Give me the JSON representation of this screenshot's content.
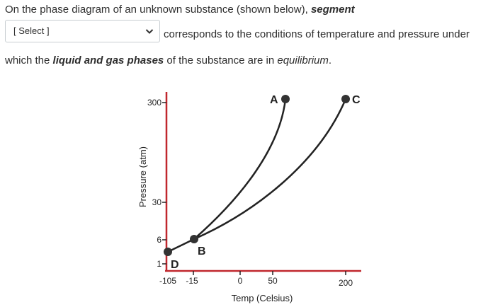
{
  "question": {
    "line1_prefix": "On the phase diagram of an unknown substance (shown below), ",
    "line1_bold": "segment",
    "select_placeholder": "[ Select ]",
    "line2": "corresponds to the conditions of temperature and pressure under",
    "line3_prefix": "which the ",
    "line3_bold": "liquid and gas phases",
    "line3_middle": " of the substance are in ",
    "line3_italic": "equilibrium",
    "line3_end": "."
  },
  "diagram": {
    "ylabel": "Pressure (atm)",
    "xlabel": "Temp (Celsius)",
    "y_ticks": [
      "300",
      "30",
      "6",
      "1"
    ],
    "x_ticks": [
      "-105",
      "-15",
      "0",
      "50",
      "200"
    ],
    "points": [
      "A",
      "B",
      "C",
      "D"
    ],
    "colors": {
      "axis": "#c0272d",
      "curve": "#222222",
      "point": "#333333"
    }
  }
}
